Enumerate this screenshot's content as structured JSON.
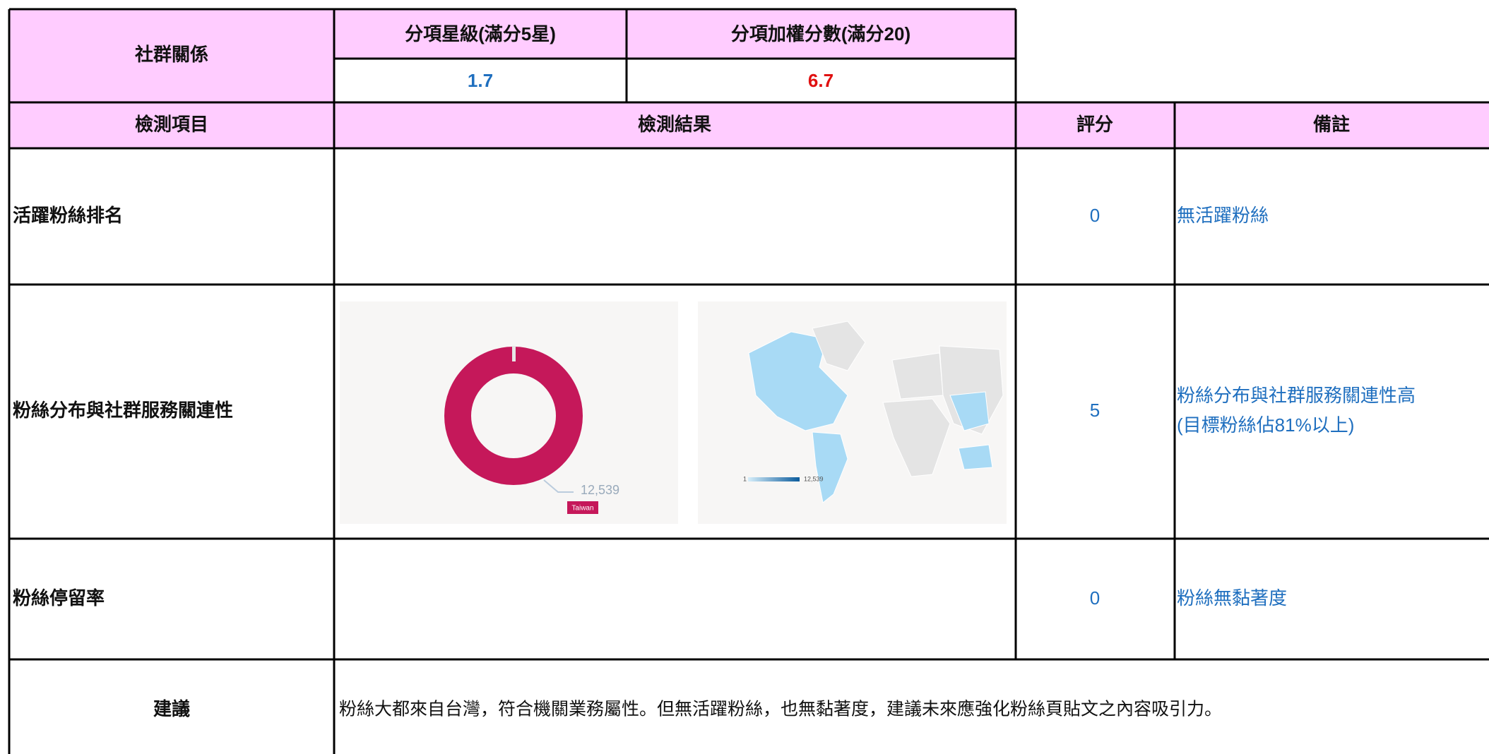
{
  "summary": {
    "title": "社群關係",
    "columns": [
      "分項星級(滿分5星)",
      "分項加權分數(滿分20)"
    ],
    "values": [
      1.7,
      6.7
    ]
  },
  "table": {
    "headers": [
      "檢測項目",
      "檢測結果",
      "評分",
      "備註"
    ],
    "rows": [
      {
        "item": "活躍粉絲排名",
        "score": 0,
        "note": [
          "無活躍粉絲"
        ]
      },
      {
        "item": "粉絲分布與社群服務關連性",
        "score": 5,
        "note": [
          "粉絲分布與社群服務關連性高",
          "(目標粉絲佔81%以上)"
        ]
      },
      {
        "item": "粉絲停留率",
        "score": 0,
        "note": [
          "粉絲無黏著度"
        ]
      }
    ]
  },
  "figures": {
    "donut_label": "12,539",
    "donut_tag": "Taiwan",
    "map_legend": [
      "1",
      "12,539"
    ]
  },
  "advice": {
    "label": "建議",
    "text": "粉絲大都來自台灣，符合機關業務屬性。但無活躍粉絲，也無黏著度，建議未來應強化粉絲頁貼文之內容吸引力。"
  }
}
